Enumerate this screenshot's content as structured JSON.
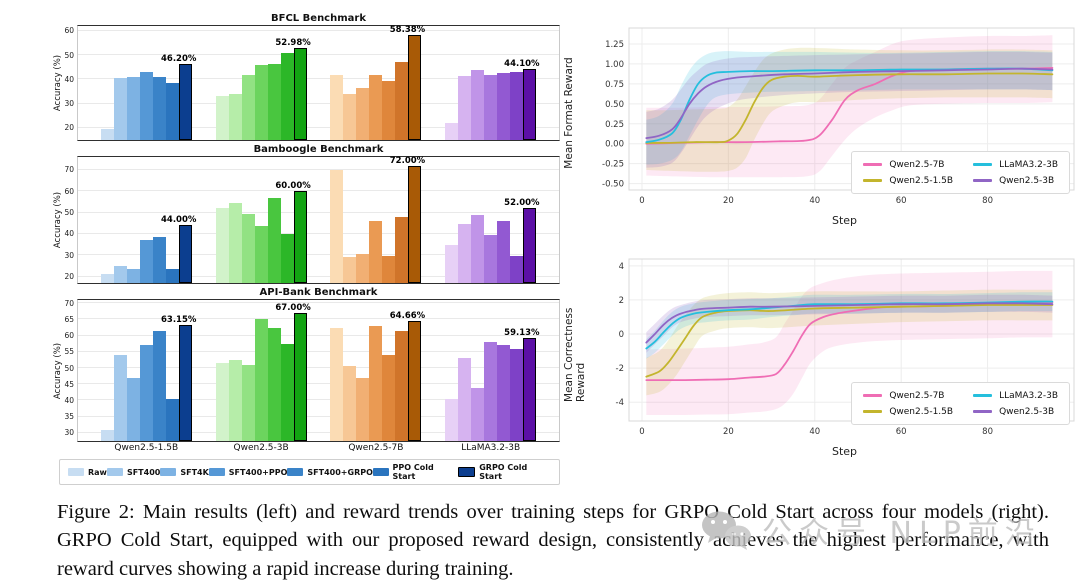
{
  "caption": "Figure 2: Main results (left) and reward trends over training steps for GRPO Cold Start across four models (right). GRPO Cold Start, equipped with our proposed reward design, consistently achieves the highest performance, with reward curves showing a rapid increase during training.",
  "watermark": {
    "icon": "wechat-icon",
    "text": "公众号  NLP前沿"
  },
  "palettes": {
    "blue": [
      "#c7ddf2",
      "#a3c9ec",
      "#7db2e3",
      "#5598d6",
      "#3a83c8",
      "#2a74be",
      "#0c3e8f"
    ],
    "green": [
      "#d2f3ca",
      "#b6eda9",
      "#92e283",
      "#6cd45e",
      "#49c63f",
      "#2cb728",
      "#12a312"
    ],
    "orange": [
      "#fbdcb4",
      "#f7c795",
      "#f1af73",
      "#ea9a53",
      "#df863b",
      "#d0742a",
      "#a85a06"
    ],
    "purple": [
      "#e7d0f6",
      "#d6b3f0",
      "#c094e8",
      "#a877de",
      "#9259d2",
      "#7e41c7",
      "#5c10a6"
    ]
  },
  "bar_legend": [
    {
      "label": "Raw",
      "color": "#c7ddf2"
    },
    {
      "label": "SFT400",
      "color": "#a3c9ec"
    },
    {
      "label": "SFT4K",
      "color": "#7db2e3"
    },
    {
      "label": "SFT400+PPO",
      "color": "#5598d6"
    },
    {
      "label": "SFT400+GRPO",
      "color": "#3a83c8"
    },
    {
      "label": "PPO Cold Start",
      "color": "#2a74be"
    },
    {
      "label": "GRPO Cold Start",
      "color": "#0c3e8f",
      "edged": true
    }
  ],
  "line_legend": [
    {
      "name": "Qwen2.5-7B",
      "color": "#ef6db4"
    },
    {
      "name": "Qwen2.5-1.5B",
      "color": "#c3b52d"
    },
    {
      "name": "LLaMA3.2-3B",
      "color": "#25bfdd"
    },
    {
      "name": "Qwen2.5-3B",
      "color": "#9065c5"
    }
  ],
  "chart_data": [
    {
      "type": "bar",
      "title": "BFCL Benchmark",
      "ylabel": "Accuracy (%)",
      "ylim": [
        15,
        62
      ],
      "yticks": [
        20,
        30,
        40,
        50,
        60
      ],
      "show_xlabels": false,
      "series_labels": [
        "Raw",
        "SFT400",
        "SFT4K",
        "SFT400+PPO",
        "SFT400+GRPO",
        "PPO Cold Start",
        "GRPO Cold Start"
      ],
      "groups": [
        {
          "model": "Qwen2.5-1.5B",
          "palette": "blue",
          "values": [
            19.5,
            40.5,
            41,
            43,
            41,
            38.5,
            46.2
          ],
          "highlight_label": "46.20%"
        },
        {
          "model": "Qwen2.5-3B",
          "palette": "green",
          "values": [
            33,
            34,
            42,
            46,
            46.5,
            51,
            52.98
          ],
          "highlight_label": "52.98%"
        },
        {
          "model": "Qwen2.5-7B",
          "palette": "orange",
          "values": [
            42,
            34,
            36.5,
            42,
            39.5,
            47,
            58.38
          ],
          "highlight_label": "58.38%"
        },
        {
          "model": "LLaMA3.2-3B",
          "palette": "purple",
          "values": [
            22,
            41.5,
            44,
            42,
            42.5,
            43,
            44.1
          ],
          "highlight_label": "44.10%"
        }
      ]
    },
    {
      "type": "bar",
      "title": "Bamboogle Benchmark",
      "ylabel": "Accuracy (%)",
      "ylim": [
        17,
        76
      ],
      "yticks": [
        20,
        30,
        40,
        50,
        60,
        70
      ],
      "show_xlabels": false,
      "series_labels": [
        "Raw",
        "SFT400",
        "SFT4K",
        "SFT400+PPO",
        "SFT400+GRPO",
        "PPO Cold Start",
        "GRPO Cold Start"
      ],
      "groups": [
        {
          "model": "Qwen2.5-1.5B",
          "palette": "blue",
          "values": [
            21,
            25,
            23.5,
            37,
            38.5,
            23.5,
            44
          ],
          "highlight_label": "44.00%"
        },
        {
          "model": "Qwen2.5-3B",
          "palette": "green",
          "values": [
            52,
            54.5,
            49.5,
            43.5,
            57,
            40,
            60
          ],
          "highlight_label": "60.00%"
        },
        {
          "model": "Qwen2.5-7B",
          "palette": "orange",
          "values": [
            70,
            29,
            30.5,
            46,
            29.5,
            48,
            72
          ],
          "highlight_label": "72.00%"
        },
        {
          "model": "LLaMA3.2-3B",
          "palette": "purple",
          "values": [
            35,
            44.5,
            49,
            39.5,
            46,
            29.5,
            52
          ],
          "highlight_label": "52.00%"
        }
      ]
    },
    {
      "type": "bar",
      "title": "API-Bank Benchmark",
      "ylabel": "Accuracy (%)",
      "ylim": [
        27.5,
        71
      ],
      "yticks": [
        30,
        35,
        40,
        45,
        50,
        55,
        60,
        65,
        70
      ],
      "show_xlabels": true,
      "series_labels": [
        "Raw",
        "SFT400",
        "SFT4K",
        "SFT400+PPO",
        "SFT400+GRPO",
        "PPO Cold Start",
        "GRPO Cold Start"
      ],
      "groups": [
        {
          "model": "Qwen2.5-1.5B",
          "palette": "blue",
          "values": [
            31,
            54,
            47,
            57,
            61.5,
            40.5,
            63.15
          ],
          "highlight_label": "63.15%"
        },
        {
          "model": "Qwen2.5-3B",
          "palette": "green",
          "values": [
            51.5,
            52.5,
            51,
            65,
            62.5,
            57.5,
            67
          ],
          "highlight_label": "67.00%"
        },
        {
          "model": "Qwen2.5-7B",
          "palette": "orange",
          "values": [
            62.5,
            50.5,
            47,
            63,
            54,
            61.5,
            64.66
          ],
          "highlight_label": "64.66%"
        },
        {
          "model": "LLaMA3.2-3B",
          "palette": "purple",
          "values": [
            40.5,
            53,
            44,
            58,
            57,
            56,
            59.13
          ],
          "highlight_label": "59.13%"
        }
      ]
    },
    {
      "type": "line",
      "ylabel": "Mean Format Reward",
      "xlabel": "Step",
      "xlim": [
        -3,
        100
      ],
      "xticks": [
        0,
        20,
        40,
        60,
        80
      ],
      "ylim": [
        -0.58,
        1.45
      ],
      "ytick_vals": [
        -0.5,
        -0.25,
        0.0,
        0.25,
        0.5,
        0.75,
        1.0,
        1.25
      ],
      "ytick_labels": [
        "-0.50",
        "-0.25",
        "0.00",
        "0.25",
        "0.50",
        "0.75",
        "1.00",
        "1.25"
      ],
      "series": [
        {
          "name": "Qwen2.5-7B",
          "color": "#ef6db4",
          "band_opacity": 0.15,
          "x": [
            1,
            8,
            16,
            24,
            32,
            38,
            41,
            44,
            47,
            50,
            54,
            58,
            62,
            70,
            80,
            88,
            95
          ],
          "y": [
            0.0,
            0.01,
            0.02,
            0.02,
            0.03,
            0.04,
            0.1,
            0.3,
            0.55,
            0.67,
            0.75,
            0.85,
            0.91,
            0.93,
            0.94,
            0.94,
            0.95
          ],
          "band_upper": [
            0.45,
            0.45,
            0.46,
            0.46,
            0.47,
            0.48,
            0.55,
            0.75,
            0.95,
            1.05,
            1.15,
            1.25,
            1.3,
            1.33,
            1.35,
            1.35,
            1.36
          ],
          "band_lower": [
            -0.4,
            -0.41,
            -0.42,
            -0.42,
            -0.42,
            -0.41,
            -0.35,
            -0.15,
            0.05,
            0.2,
            0.33,
            0.42,
            0.48,
            0.5,
            0.51,
            0.51,
            0.52
          ]
        },
        {
          "name": "Qwen2.5-1.5B",
          "color": "#c3b52d",
          "band_opacity": 0.18,
          "x": [
            1,
            6,
            12,
            18,
            20,
            22,
            24,
            26,
            28,
            30,
            33,
            36,
            40,
            45,
            50,
            60,
            70,
            80,
            88,
            95
          ],
          "y": [
            0.01,
            0.01,
            0.02,
            0.02,
            0.04,
            0.12,
            0.3,
            0.52,
            0.7,
            0.8,
            0.84,
            0.85,
            0.84,
            0.85,
            0.86,
            0.87,
            0.87,
            0.88,
            0.88,
            0.87
          ],
          "band_upper": [
            0.42,
            0.42,
            0.43,
            0.44,
            0.46,
            0.55,
            0.72,
            0.9,
            1.05,
            1.13,
            1.18,
            1.2,
            1.2,
            1.19,
            1.18,
            1.17,
            1.17,
            1.18,
            1.18,
            1.17
          ],
          "band_lower": [
            -0.33,
            -0.34,
            -0.35,
            -0.35,
            -0.34,
            -0.3,
            -0.18,
            0.05,
            0.25,
            0.4,
            0.48,
            0.52,
            0.52,
            0.53,
            0.55,
            0.57,
            0.58,
            0.58,
            0.58,
            0.57
          ]
        },
        {
          "name": "LLaMA3.2-3B",
          "color": "#25bfdd",
          "band_opacity": 0.18,
          "x": [
            1,
            4,
            7,
            9,
            11,
            13,
            15,
            17,
            20,
            25,
            30,
            40,
            50,
            60,
            70,
            80,
            88,
            95
          ],
          "y": [
            0.02,
            0.05,
            0.13,
            0.3,
            0.55,
            0.75,
            0.85,
            0.89,
            0.9,
            0.91,
            0.91,
            0.92,
            0.92,
            0.93,
            0.93,
            0.94,
            0.94,
            0.92
          ],
          "band_upper": [
            0.3,
            0.35,
            0.5,
            0.72,
            0.92,
            1.05,
            1.12,
            1.15,
            1.16,
            1.15,
            1.15,
            1.15,
            1.14,
            1.14,
            1.15,
            1.16,
            1.16,
            1.15
          ],
          "band_lower": [
            -0.26,
            -0.25,
            -0.2,
            -0.1,
            0.1,
            0.3,
            0.48,
            0.58,
            0.62,
            0.64,
            0.65,
            0.66,
            0.67,
            0.68,
            0.68,
            0.68,
            0.68,
            0.67
          ]
        },
        {
          "name": "Qwen2.5-3B",
          "color": "#9065c5",
          "band_opacity": 0.2,
          "x": [
            1,
            4,
            7,
            9,
            11,
            13,
            15,
            18,
            22,
            27,
            33,
            40,
            50,
            60,
            70,
            80,
            88,
            95
          ],
          "y": [
            0.07,
            0.1,
            0.18,
            0.32,
            0.5,
            0.63,
            0.72,
            0.79,
            0.83,
            0.85,
            0.87,
            0.88,
            0.9,
            0.91,
            0.92,
            0.93,
            0.94,
            0.93
          ],
          "band_upper": [
            0.4,
            0.44,
            0.55,
            0.68,
            0.82,
            0.92,
            1.0,
            1.05,
            1.08,
            1.09,
            1.1,
            1.11,
            1.12,
            1.13,
            1.14,
            1.15,
            1.15,
            1.14
          ],
          "band_lower": [
            -0.3,
            -0.29,
            -0.24,
            -0.12,
            0.05,
            0.22,
            0.35,
            0.46,
            0.54,
            0.58,
            0.61,
            0.63,
            0.65,
            0.66,
            0.67,
            0.68,
            0.68,
            0.67
          ]
        }
      ]
    },
    {
      "type": "line",
      "ylabel": "Mean Correctness Reward",
      "xlabel": "Step",
      "xlim": [
        -3,
        100
      ],
      "xticks": [
        0,
        20,
        40,
        60,
        80
      ],
      "ylim": [
        -5.1,
        4.4
      ],
      "ytick_vals": [
        -4,
        -2,
        0,
        2,
        4
      ],
      "ytick_labels": [
        "-4",
        "-2",
        "0",
        "2",
        "4"
      ],
      "series": [
        {
          "name": "Qwen2.5-7B",
          "color": "#ef6db4",
          "band_opacity": 0.15,
          "x": [
            1,
            5,
            10,
            15,
            20,
            25,
            28,
            31,
            33,
            35,
            37,
            39,
            42,
            45,
            50,
            55,
            60,
            70,
            80,
            88,
            95
          ],
          "y": [
            -2.7,
            -2.7,
            -2.7,
            -2.68,
            -2.65,
            -2.55,
            -2.5,
            -2.35,
            -1.8,
            -1.0,
            -0.1,
            0.6,
            1.0,
            1.2,
            1.4,
            1.55,
            1.6,
            1.65,
            1.75,
            1.8,
            1.85
          ],
          "band_upper": [
            -0.9,
            -0.88,
            -0.85,
            -0.8,
            -0.75,
            -0.6,
            -0.5,
            -0.2,
            0.6,
            1.4,
            2.2,
            2.7,
            3.0,
            3.2,
            3.4,
            3.5,
            3.55,
            3.6,
            3.65,
            3.7,
            3.7
          ],
          "band_lower": [
            -4.75,
            -4.75,
            -4.75,
            -4.72,
            -4.7,
            -4.6,
            -4.55,
            -4.4,
            -4.1,
            -3.5,
            -2.6,
            -1.7,
            -1.0,
            -0.7,
            -0.5,
            -0.4,
            -0.35,
            -0.3,
            -0.25,
            -0.2,
            -0.2
          ]
        },
        {
          "name": "Qwen2.5-1.5B",
          "color": "#c3b52d",
          "band_opacity": 0.18,
          "x": [
            1,
            4,
            6,
            8,
            10,
            12,
            14,
            17,
            20,
            25,
            30,
            40,
            50,
            60,
            70,
            80,
            88,
            95
          ],
          "y": [
            -2.5,
            -2.2,
            -1.7,
            -1.0,
            -0.25,
            0.5,
            1.0,
            1.25,
            1.35,
            1.4,
            1.35,
            1.5,
            1.55,
            1.6,
            1.65,
            1.7,
            1.7,
            1.7
          ],
          "band_upper": [
            -1.4,
            -1.0,
            -0.4,
            0.4,
            1.1,
            1.7,
            2.1,
            2.3,
            2.4,
            2.45,
            2.4,
            2.5,
            2.5,
            2.5,
            2.55,
            2.6,
            2.6,
            2.6
          ],
          "band_lower": [
            -3.6,
            -3.4,
            -3.0,
            -2.4,
            -1.6,
            -0.8,
            -0.1,
            0.2,
            0.35,
            0.4,
            0.35,
            0.5,
            0.6,
            0.7,
            0.75,
            0.8,
            0.8,
            0.8
          ]
        },
        {
          "name": "LLaMA3.2-3B",
          "color": "#25bfdd",
          "band_opacity": 0.18,
          "x": [
            1,
            3,
            5,
            7,
            9,
            12,
            15,
            20,
            25,
            30,
            35,
            40,
            50,
            60,
            70,
            80,
            88,
            95
          ],
          "y": [
            -0.85,
            -0.45,
            0.1,
            0.6,
            0.95,
            1.2,
            1.3,
            1.4,
            1.45,
            1.55,
            1.65,
            1.75,
            1.75,
            1.8,
            1.8,
            1.85,
            1.9,
            1.9
          ],
          "band_upper": [
            -0.3,
            0.2,
            0.8,
            1.3,
            1.6,
            1.8,
            1.9,
            2.0,
            2.05,
            2.1,
            2.2,
            2.3,
            2.3,
            2.35,
            2.35,
            2.4,
            2.45,
            2.45
          ],
          "band_lower": [
            -1.45,
            -1.1,
            -0.6,
            -0.1,
            0.3,
            0.6,
            0.7,
            0.8,
            0.85,
            1.0,
            1.1,
            1.2,
            1.2,
            1.25,
            1.25,
            1.3,
            1.35,
            1.35
          ]
        },
        {
          "name": "Qwen2.5-3B",
          "color": "#9065c5",
          "band_opacity": 0.2,
          "x": [
            1,
            3,
            5,
            7,
            9,
            12,
            15,
            20,
            25,
            30,
            40,
            50,
            60,
            70,
            80,
            88,
            95
          ],
          "y": [
            -0.5,
            0.0,
            0.55,
            0.95,
            1.2,
            1.4,
            1.5,
            1.55,
            1.6,
            1.6,
            1.65,
            1.7,
            1.75,
            1.75,
            1.8,
            1.8,
            1.75
          ],
          "band_upper": [
            0.1,
            0.6,
            1.1,
            1.5,
            1.7,
            1.9,
            2.0,
            2.05,
            2.1,
            2.1,
            2.15,
            2.2,
            2.25,
            2.25,
            2.3,
            2.3,
            2.25
          ],
          "band_lower": [
            -1.1,
            -0.6,
            -0.1,
            0.4,
            0.7,
            0.9,
            1.0,
            1.05,
            1.1,
            1.1,
            1.15,
            1.2,
            1.25,
            1.25,
            1.3,
            1.3,
            1.25
          ]
        }
      ]
    }
  ]
}
